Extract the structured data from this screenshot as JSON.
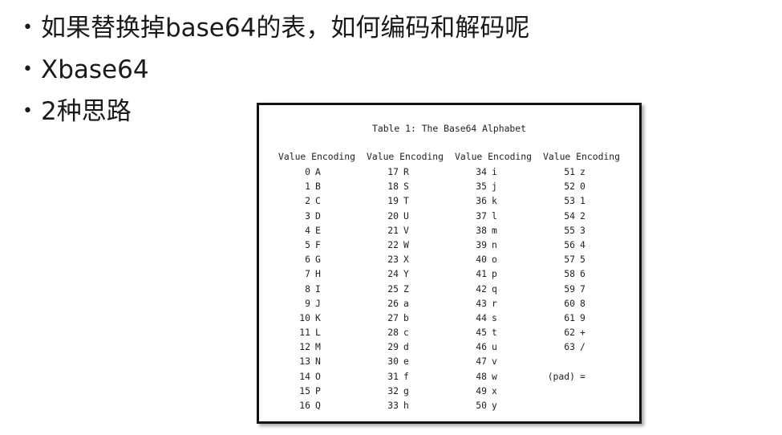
{
  "bullets": [
    {
      "text": "如果替换掉base64的表，如何编码和解码呢"
    },
    {
      "text": "Xbase64"
    },
    {
      "text": "2种思路"
    }
  ],
  "table": {
    "title": "Table 1: The Base64 Alphabet",
    "header_value": "Value",
    "header_encoding": "Encoding",
    "columns": [
      [
        {
          "v": "0",
          "e": "A"
        },
        {
          "v": "1",
          "e": "B"
        },
        {
          "v": "2",
          "e": "C"
        },
        {
          "v": "3",
          "e": "D"
        },
        {
          "v": "4",
          "e": "E"
        },
        {
          "v": "5",
          "e": "F"
        },
        {
          "v": "6",
          "e": "G"
        },
        {
          "v": "7",
          "e": "H"
        },
        {
          "v": "8",
          "e": "I"
        },
        {
          "v": "9",
          "e": "J"
        },
        {
          "v": "10",
          "e": "K"
        },
        {
          "v": "11",
          "e": "L"
        },
        {
          "v": "12",
          "e": "M"
        },
        {
          "v": "13",
          "e": "N"
        },
        {
          "v": "14",
          "e": "O"
        },
        {
          "v": "15",
          "e": "P"
        },
        {
          "v": "16",
          "e": "Q"
        }
      ],
      [
        {
          "v": "17",
          "e": "R"
        },
        {
          "v": "18",
          "e": "S"
        },
        {
          "v": "19",
          "e": "T"
        },
        {
          "v": "20",
          "e": "U"
        },
        {
          "v": "21",
          "e": "V"
        },
        {
          "v": "22",
          "e": "W"
        },
        {
          "v": "23",
          "e": "X"
        },
        {
          "v": "24",
          "e": "Y"
        },
        {
          "v": "25",
          "e": "Z"
        },
        {
          "v": "26",
          "e": "a"
        },
        {
          "v": "27",
          "e": "b"
        },
        {
          "v": "28",
          "e": "c"
        },
        {
          "v": "29",
          "e": "d"
        },
        {
          "v": "30",
          "e": "e"
        },
        {
          "v": "31",
          "e": "f"
        },
        {
          "v": "32",
          "e": "g"
        },
        {
          "v": "33",
          "e": "h"
        }
      ],
      [
        {
          "v": "34",
          "e": "i"
        },
        {
          "v": "35",
          "e": "j"
        },
        {
          "v": "36",
          "e": "k"
        },
        {
          "v": "37",
          "e": "l"
        },
        {
          "v": "38",
          "e": "m"
        },
        {
          "v": "39",
          "e": "n"
        },
        {
          "v": "40",
          "e": "o"
        },
        {
          "v": "41",
          "e": "p"
        },
        {
          "v": "42",
          "e": "q"
        },
        {
          "v": "43",
          "e": "r"
        },
        {
          "v": "44",
          "e": "s"
        },
        {
          "v": "45",
          "e": "t"
        },
        {
          "v": "46",
          "e": "u"
        },
        {
          "v": "47",
          "e": "v"
        },
        {
          "v": "48",
          "e": "w"
        },
        {
          "v": "49",
          "e": "x"
        },
        {
          "v": "50",
          "e": "y"
        }
      ],
      [
        {
          "v": "51",
          "e": "z"
        },
        {
          "v": "52",
          "e": "0"
        },
        {
          "v": "53",
          "e": "1"
        },
        {
          "v": "54",
          "e": "2"
        },
        {
          "v": "55",
          "e": "3"
        },
        {
          "v": "56",
          "e": "4"
        },
        {
          "v": "57",
          "e": "5"
        },
        {
          "v": "58",
          "e": "6"
        },
        {
          "v": "59",
          "e": "7"
        },
        {
          "v": "60",
          "e": "8"
        },
        {
          "v": "61",
          "e": "9"
        },
        {
          "v": "62",
          "e": "+"
        },
        {
          "v": "63",
          "e": "/"
        }
      ]
    ],
    "pad": {
      "v": "(pad)",
      "e": "="
    }
  }
}
